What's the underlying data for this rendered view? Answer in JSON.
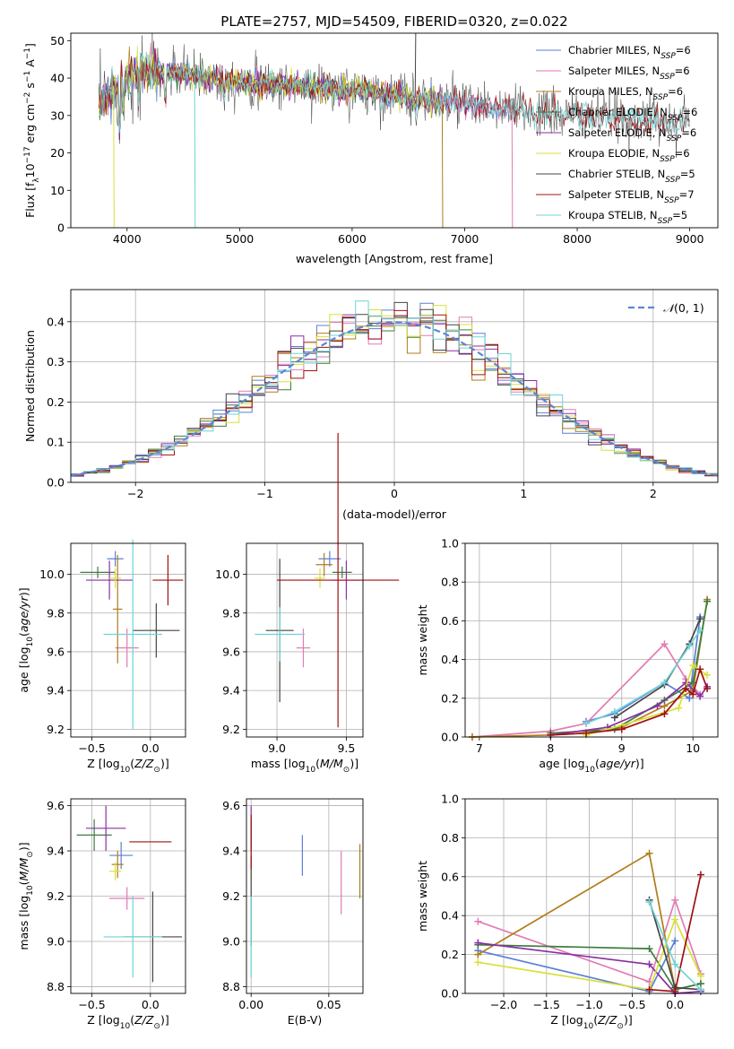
{
  "figure_title": "PLATE=2757, MJD=54509, FIBERID=0320, z=0.022",
  "colors": {
    "Chabrier MILES": "#5b7fd8",
    "Salpeter MILES": "#e27bb4",
    "Kroupa MILES": "#b07d1c",
    "Chabrier ELODIE": "#3f7d3f",
    "Salpeter ELODIE": "#8b2fa2",
    "Kroupa ELODIE": "#d8e03a",
    "Chabrier STELIB": "#444444",
    "Salpeter STELIB": "#a01010",
    "Kroupa STELIB": "#6fd3d6"
  },
  "chart_data": [
    {
      "id": "spectrum",
      "type": "line",
      "title": "PLATE=2757, MJD=54509, FIBERID=0320, z=0.022",
      "xlabel": "wavelength [Angstrom, rest frame]",
      "ylabel": "Flux [f_λ 10^-17 erg cm^-2 s^-1 A^-1]",
      "xlim": [
        3500,
        9250
      ],
      "ylim": [
        0,
        52
      ],
      "xticks": [
        4000,
        5000,
        6000,
        7000,
        8000,
        9000
      ],
      "yticks": [
        0,
        10,
        20,
        30,
        40,
        50
      ],
      "grid": false,
      "legend_position": "top-right",
      "continuum": {
        "x": [
          3750,
          4000,
          4200,
          4500,
          5000,
          5500,
          6000,
          6500,
          7000,
          7500,
          8000,
          8500,
          9000
        ],
        "y": [
          33,
          41,
          42,
          41,
          39,
          38,
          37,
          35,
          33,
          31,
          30,
          29,
          28.5
        ]
      },
      "series": [
        {
          "name": "Chabrier MILES",
          "legend_label": "Chabrier MILES, N",
          "legend_sub": "SSP",
          "legend_tail": "=6",
          "x_end": 7400
        },
        {
          "name": "Salpeter MILES",
          "legend_label": "Salpeter MILES, N",
          "legend_sub": "SSP",
          "legend_tail": "=6",
          "x_end": 7400
        },
        {
          "name": "Kroupa MILES",
          "legend_label": "Kroupa MILES, N",
          "legend_sub": "SSP",
          "legend_tail": "=6",
          "x_end": 6800
        },
        {
          "name": "Chabrier ELODIE",
          "legend_label": "Chabrier ELODIE, N",
          "legend_sub": "SSP",
          "legend_tail": "=6",
          "x_end": 6800
        },
        {
          "name": "Salpeter ELODIE",
          "legend_label": "Salpeter ELODIE, N",
          "legend_sub": "SSP",
          "legend_tail": "=6",
          "x_end": 6800
        },
        {
          "name": "Kroupa ELODIE",
          "legend_label": "Kroupa ELODIE, N",
          "legend_sub": "SSP",
          "legend_tail": "=6",
          "x_end": 6800
        },
        {
          "name": "Chabrier STELIB",
          "legend_label": "Chabrier STELIB, N",
          "legend_sub": "SSP",
          "legend_tail": "=5",
          "x_end": 9000
        },
        {
          "name": "Salpeter STELIB",
          "legend_label": "Salpeter STELIB, N",
          "legend_sub": "SSP",
          "legend_tail": "=7",
          "x_end": 9000
        },
        {
          "name": "Kroupa STELIB",
          "legend_label": "Kroupa STELIB, N",
          "legend_sub": "SSP",
          "legend_tail": "=5",
          "x_end": 9000
        }
      ]
    },
    {
      "id": "residuals",
      "type": "histogram",
      "xlabel": "(data-model)/error",
      "ylabel": "Normed distribution",
      "xlim": [
        -2.5,
        2.5
      ],
      "ylim": [
        0,
        0.48
      ],
      "xticks": [
        -2,
        -1,
        0,
        1,
        2
      ],
      "yticks": [
        0.0,
        0.1,
        0.2,
        0.3,
        0.4
      ],
      "grid": true,
      "legend_position": "top-right",
      "reference_curve": {
        "label": "N(0,1)",
        "mean": 0,
        "sigma": 1
      },
      "bin_width": 0.1
    },
    {
      "id": "age_vs_Z",
      "type": "errorbar",
      "xlabel": "Z [log10(Z/Z⊙)]",
      "ylabel": "age [log10(age/yr)]",
      "xlim": [
        -0.68,
        0.3
      ],
      "ylim": [
        9.16,
        10.16
      ],
      "xticks": [
        -0.5,
        0.0
      ],
      "yticks": [
        9.2,
        9.4,
        9.6,
        9.8,
        10.0
      ],
      "grid": true,
      "points": [
        {
          "series": "Chabrier MILES",
          "x": -0.3,
          "xerr": 0.07,
          "y": 10.08,
          "yerr": 0.04
        },
        {
          "series": "Salpeter MILES",
          "x": -0.2,
          "xerr": 0.1,
          "y": 9.62,
          "yerr": 0.1
        },
        {
          "series": "Kroupa MILES",
          "x": -0.28,
          "xerr": 0.04,
          "y": 9.82,
          "yerr": 0.28
        },
        {
          "series": "Chabrier ELODIE",
          "x": -0.45,
          "xerr": 0.15,
          "y": 10.01,
          "yerr": 0.03
        },
        {
          "series": "Salpeter ELODIE",
          "x": -0.35,
          "xerr": 0.2,
          "y": 9.97,
          "yerr": 0.1
        },
        {
          "series": "Kroupa ELODIE",
          "x": -0.3,
          "xerr": 0.05,
          "y": 9.98,
          "yerr": 0.05
        },
        {
          "series": "Chabrier STELIB",
          "x": 0.05,
          "xerr": 0.2,
          "y": 9.71,
          "yerr": 0.14
        },
        {
          "series": "Salpeter STELIB",
          "x": 0.15,
          "xerr": 0.13,
          "y": 9.97,
          "yerr": 0.13
        },
        {
          "series": "Kroupa STELIB",
          "x": -0.15,
          "xerr": 0.25,
          "y": 9.69,
          "yerr": 0.49
        }
      ]
    },
    {
      "id": "age_vs_mass",
      "type": "errorbar",
      "xlabel": "mass [log10(M/M⊙)]",
      "ylabel": "",
      "xlim": [
        8.78,
        9.62
      ],
      "ylim": [
        9.16,
        10.16
      ],
      "xticks": [
        9.0,
        9.5
      ],
      "yticks": [
        9.2,
        9.4,
        9.6,
        9.8,
        10.0
      ],
      "grid": true,
      "points": [
        {
          "series": "Chabrier MILES",
          "x": 9.38,
          "xerr": 0.08,
          "y": 10.08,
          "yerr": 0.04
        },
        {
          "series": "Salpeter MILES",
          "x": 9.19,
          "xerr": 0.05,
          "y": 9.62,
          "yerr": 0.1
        },
        {
          "series": "Kroupa MILES",
          "x": 9.34,
          "xerr": 0.06,
          "y": 10.05,
          "yerr": 0.06
        },
        {
          "series": "Chabrier ELODIE",
          "x": 9.47,
          "xerr": 0.07,
          "y": 10.01,
          "yerr": 0.03
        },
        {
          "series": "Salpeter ELODIE",
          "x": 9.5,
          "xerr": 0.1,
          "y": 9.97,
          "yerr": 0.1
        },
        {
          "series": "Kroupa ELODIE",
          "x": 9.31,
          "xerr": 0.04,
          "y": 9.98,
          "yerr": 0.05
        },
        {
          "series": "Chabrier STELIB",
          "x": 9.02,
          "xerr": 0.1,
          "y": 9.71,
          "yerr": 0.37
        },
        {
          "series": "Salpeter STELIB",
          "x": 9.44,
          "xerr": 0.44,
          "y": 9.97,
          "yerr": 0.76
        },
        {
          "series": "Kroupa STELIB",
          "x": 9.02,
          "xerr": 0.18,
          "y": 9.69,
          "yerr": 0.14
        }
      ]
    },
    {
      "id": "mass_weight_vs_age",
      "type": "line",
      "xlabel": "age [log10(age/yr)]",
      "ylabel": "mass weight",
      "xlim": [
        6.8,
        10.35
      ],
      "ylim": [
        0,
        1.0
      ],
      "xticks": [
        7,
        8,
        9,
        10
      ],
      "yticks": [
        0.0,
        0.2,
        0.4,
        0.6,
        0.8,
        1.0
      ],
      "grid": true,
      "series": [
        {
          "name": "Chabrier MILES",
          "x": [
            8.5,
            8.9,
            9.6,
            9.95,
            10.1
          ],
          "y": [
            0.08,
            0.12,
            0.28,
            0.2,
            0.62
          ]
        },
        {
          "name": "Salpeter MILES",
          "x": [
            6.9,
            8.0,
            8.5,
            9.6,
            9.9,
            10.1
          ],
          "y": [
            0.0,
            0.03,
            0.07,
            0.48,
            0.3,
            0.22
          ]
        },
        {
          "name": "Kroupa MILES",
          "x": [
            6.9,
            8.0,
            8.5,
            9.0,
            9.6,
            10.0,
            10.2
          ],
          "y": [
            0.0,
            0.01,
            0.02,
            0.05,
            0.16,
            0.24,
            0.71
          ]
        },
        {
          "name": "Chabrier ELODIE",
          "x": [
            8.0,
            8.9,
            9.6,
            10.0,
            10.2
          ],
          "y": [
            0.02,
            0.04,
            0.19,
            0.28,
            0.7
          ]
        },
        {
          "name": "Salpeter ELODIE",
          "x": [
            8.0,
            8.8,
            9.5,
            9.9,
            10.1,
            10.2
          ],
          "y": [
            0.01,
            0.05,
            0.16,
            0.28,
            0.21,
            0.26
          ]
        },
        {
          "name": "Kroupa ELODIE",
          "x": [
            8.5,
            9.0,
            9.8,
            10.0,
            10.2
          ],
          "y": [
            0.01,
            0.06,
            0.15,
            0.37,
            0.32
          ]
        },
        {
          "name": "Chabrier STELIB",
          "x": [
            8.9,
            9.6,
            9.95,
            10.1
          ],
          "y": [
            0.1,
            0.27,
            0.48,
            0.61
          ]
        },
        {
          "name": "Salpeter STELIB",
          "x": [
            8.0,
            8.5,
            9.0,
            9.6,
            9.9,
            10.0,
            10.1,
            10.2
          ],
          "y": [
            0.01,
            0.02,
            0.04,
            0.12,
            0.25,
            0.22,
            0.35,
            0.25
          ]
        },
        {
          "name": "Kroupa STELIB",
          "x": [
            8.5,
            8.9,
            9.6,
            9.95,
            10.1
          ],
          "y": [
            0.07,
            0.13,
            0.28,
            0.47,
            0.55
          ]
        }
      ]
    },
    {
      "id": "mass_vs_Z",
      "type": "errorbar",
      "xlabel": "Z [log10(Z/Z⊙)]",
      "ylabel": "mass [log10(M/M⊙)]",
      "xlim": [
        -0.68,
        0.3
      ],
      "ylim": [
        8.77,
        9.63
      ],
      "xticks": [
        -0.5,
        0.0
      ],
      "yticks": [
        8.8,
        9.0,
        9.2,
        9.4,
        9.6
      ],
      "grid": true,
      "points": [
        {
          "series": "Chabrier MILES",
          "x": -0.25,
          "xerr": 0.1,
          "y": 9.38,
          "yerr": 0.06
        },
        {
          "series": "Salpeter MILES",
          "x": -0.2,
          "xerr": 0.15,
          "y": 9.19,
          "yerr": 0.05
        },
        {
          "series": "Kroupa MILES",
          "x": -0.28,
          "xerr": 0.05,
          "y": 9.34,
          "yerr": 0.06
        },
        {
          "series": "Chabrier ELODIE",
          "x": -0.48,
          "xerr": 0.15,
          "y": 9.47,
          "yerr": 0.07
        },
        {
          "series": "Salpeter ELODIE",
          "x": -0.38,
          "xerr": 0.17,
          "y": 9.5,
          "yerr": 0.1
        },
        {
          "series": "Kroupa ELODIE",
          "x": -0.3,
          "xerr": 0.05,
          "y": 9.31,
          "yerr": 0.04
        },
        {
          "series": "Chabrier STELIB",
          "x": 0.02,
          "xerr": 0.25,
          "y": 9.02,
          "yerr": 0.2
        },
        {
          "series": "Salpeter STELIB",
          "x": 0.0,
          "xerr": 0.18,
          "y": 9.44,
          "yerr": 0.0
        },
        {
          "series": "Kroupa STELIB",
          "x": -0.15,
          "xerr": 0.25,
          "y": 9.02,
          "yerr": 0.18
        }
      ]
    },
    {
      "id": "mass_vs_ebv",
      "type": "errorbar",
      "xlabel": "E(B-V)",
      "ylabel": "",
      "xlim": [
        -0.003,
        0.072
      ],
      "ylim": [
        8.77,
        9.63
      ],
      "xticks": [
        0.0,
        0.05
      ],
      "yticks": [
        8.8,
        9.0,
        9.2,
        9.4,
        9.6
      ],
      "grid": true,
      "points": [
        {
          "series": "Chabrier MILES",
          "x": 0.033,
          "xerr": 0.0,
          "y": 9.38,
          "yerr": 0.09
        },
        {
          "series": "Salpeter MILES",
          "x": 0.058,
          "xerr": 0.0,
          "y": 9.26,
          "yerr": 0.14
        },
        {
          "series": "Kroupa MILES",
          "x": 0.07,
          "xerr": 0.0,
          "y": 9.31,
          "yerr": 0.12
        },
        {
          "series": "Chabrier ELODIE",
          "x": 0.0,
          "xerr": 0.0,
          "y": 9.47,
          "yerr": 0.07
        },
        {
          "series": "Salpeter ELODIE",
          "x": 0.0,
          "xerr": 0.0,
          "y": 9.5,
          "yerr": 0.1
        },
        {
          "series": "Kroupa ELODIE",
          "x": 0.0,
          "xerr": 0.0,
          "y": 9.31,
          "yerr": 0.04
        },
        {
          "series": "Chabrier STELIB",
          "x": 0.0,
          "xerr": 0.0,
          "y": 9.18,
          "yerr": 0.2
        },
        {
          "series": "Salpeter STELIB",
          "x": 0.0,
          "xerr": 0.0,
          "y": 9.44,
          "yerr": 0.12
        },
        {
          "series": "Kroupa STELIB",
          "x": 0.0,
          "xerr": 0.0,
          "y": 9.02,
          "yerr": 0.18
        }
      ]
    },
    {
      "id": "mass_weight_vs_Z",
      "type": "line",
      "xlabel": "Z [log10(Z/Z⊙)]",
      "ylabel": "mass weight",
      "xlim": [
        -2.45,
        0.5
      ],
      "ylim": [
        0,
        1.0
      ],
      "xticks": [
        -2.0,
        -1.5,
        -1.0,
        -0.5,
        0.0
      ],
      "yticks": [
        0.0,
        0.2,
        0.4,
        0.6,
        0.8,
        1.0
      ],
      "grid": true,
      "series": [
        {
          "name": "Chabrier MILES",
          "x": [
            -2.3,
            -0.3,
            0.0
          ],
          "y": [
            0.22,
            0.01,
            0.27
          ]
        },
        {
          "name": "Salpeter MILES",
          "x": [
            -2.3,
            -0.3,
            0.0,
            0.3
          ],
          "y": [
            0.37,
            0.06,
            0.48,
            0.1
          ]
        },
        {
          "name": "Kroupa MILES",
          "x": [
            -2.3,
            -0.3,
            0.0,
            0.3
          ],
          "y": [
            0.2,
            0.72,
            0.02,
            0.05
          ]
        },
        {
          "name": "Chabrier ELODIE",
          "x": [
            -2.3,
            -0.3,
            0.0,
            0.3
          ],
          "y": [
            0.25,
            0.23,
            0.02,
            0.05
          ]
        },
        {
          "name": "Salpeter ELODIE",
          "x": [
            -2.3,
            -0.3,
            0.0,
            0.3
          ],
          "y": [
            0.26,
            0.15,
            0.0,
            0.01
          ]
        },
        {
          "name": "Kroupa ELODIE",
          "x": [
            -2.3,
            -0.3,
            0.0,
            0.3
          ],
          "y": [
            0.16,
            0.02,
            0.38,
            0.09
          ]
        },
        {
          "name": "Chabrier STELIB",
          "x": [
            -0.3,
            0.0,
            0.3
          ],
          "y": [
            0.48,
            0.03,
            0.02
          ]
        },
        {
          "name": "Salpeter STELIB",
          "x": [
            -0.3,
            0.0,
            0.3
          ],
          "y": [
            0.02,
            0.01,
            0.61
          ]
        },
        {
          "name": "Kroupa STELIB",
          "x": [
            -0.3,
            0.0,
            0.3
          ],
          "y": [
            0.47,
            0.15,
            0.02
          ]
        }
      ]
    }
  ]
}
